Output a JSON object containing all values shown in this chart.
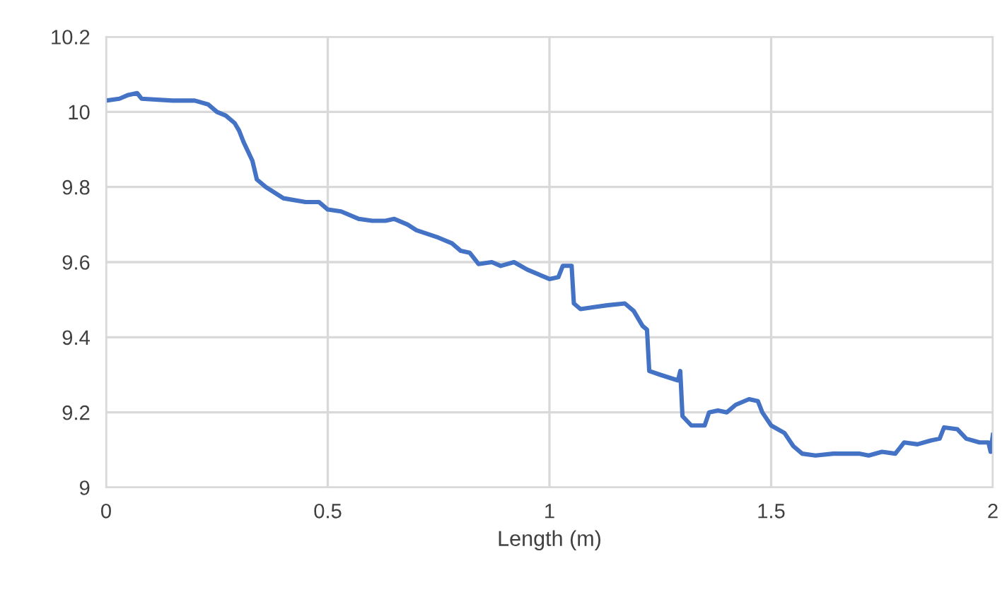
{
  "chart_data": {
    "type": "line",
    "xlabel": "Length (m)",
    "xlim": [
      0,
      2
    ],
    "xticks": [
      0,
      0.5,
      1,
      1.5,
      2
    ],
    "ylim": [
      9,
      10.2
    ],
    "yticks": [
      9,
      9.2,
      9.4,
      9.6,
      9.8,
      10,
      10.2
    ],
    "grid": true,
    "marker": "none",
    "line_style": "solid",
    "series": [
      {
        "color": "#4472c4",
        "x": [
          0,
          0.03,
          0.05,
          0.07,
          0.08,
          0.15,
          0.2,
          0.23,
          0.25,
          0.27,
          0.29,
          0.3,
          0.31,
          0.33,
          0.34,
          0.36,
          0.4,
          0.45,
          0.48,
          0.5,
          0.53,
          0.57,
          0.6,
          0.63,
          0.65,
          0.68,
          0.7,
          0.75,
          0.78,
          0.8,
          0.82,
          0.84,
          0.87,
          0.89,
          0.92,
          0.95,
          1.0,
          1.02,
          1.03,
          1.05,
          1.055,
          1.07,
          1.1,
          1.13,
          1.17,
          1.19,
          1.21,
          1.22,
          1.225,
          1.25,
          1.29,
          1.295,
          1.3,
          1.32,
          1.35,
          1.36,
          1.38,
          1.4,
          1.42,
          1.45,
          1.47,
          1.48,
          1.5,
          1.53,
          1.55,
          1.57,
          1.6,
          1.64,
          1.7,
          1.72,
          1.75,
          1.78,
          1.8,
          1.83,
          1.86,
          1.88,
          1.89,
          1.92,
          1.94,
          1.97,
          1.99,
          1.995,
          2.0
        ],
        "values": [
          10.03,
          10.035,
          10.045,
          10.05,
          10.035,
          10.03,
          10.03,
          10.02,
          10.0,
          9.99,
          9.97,
          9.95,
          9.92,
          9.87,
          9.82,
          9.8,
          9.77,
          9.76,
          9.76,
          9.74,
          9.735,
          9.715,
          9.71,
          9.71,
          9.715,
          9.7,
          9.685,
          9.665,
          9.65,
          9.63,
          9.625,
          9.595,
          9.6,
          9.59,
          9.6,
          9.58,
          9.555,
          9.56,
          9.59,
          9.59,
          9.49,
          9.475,
          9.48,
          9.485,
          9.49,
          9.47,
          9.43,
          9.42,
          9.31,
          9.3,
          9.285,
          9.31,
          9.19,
          9.165,
          9.165,
          9.2,
          9.205,
          9.2,
          9.22,
          9.235,
          9.23,
          9.2,
          9.165,
          9.145,
          9.11,
          9.09,
          9.085,
          9.09,
          9.09,
          9.085,
          9.095,
          9.09,
          9.12,
          9.115,
          9.125,
          9.13,
          9.16,
          9.155,
          9.13,
          9.12,
          9.12,
          9.095,
          9.14
        ]
      }
    ]
  }
}
